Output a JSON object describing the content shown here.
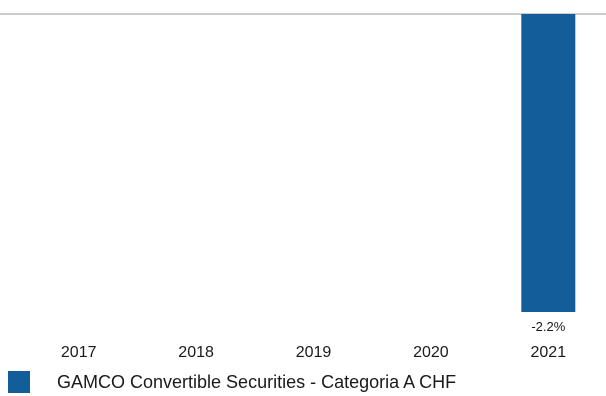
{
  "chart_data": {
    "type": "bar",
    "categories": [
      "2017",
      "2018",
      "2019",
      "2020",
      "2021"
    ],
    "series": [
      {
        "name": "GAMCO Convertible Securities - Categoria A CHF",
        "values": [
          null,
          null,
          null,
          null,
          -2.2
        ],
        "data_labels": [
          "",
          "",
          "",
          "",
          "-2.2%"
        ]
      }
    ],
    "ylim": [
      -2.2,
      0
    ],
    "grid": false,
    "legend_position": "bottom-left",
    "colors": {
      "series": "#135e9a",
      "baseline": "#9a9a9a"
    }
  }
}
